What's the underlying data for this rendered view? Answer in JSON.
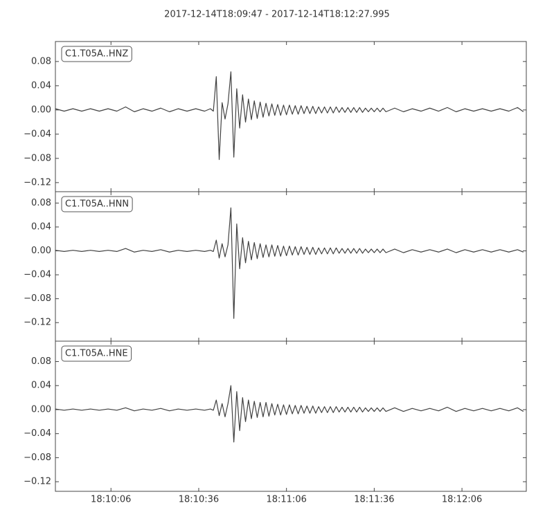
{
  "chart_data": [
    {
      "type": "line",
      "title": "2017-12-14T18:09:47  -  2017-12-14T18:12:27.995",
      "xlim": [
        65387,
        65547.995
      ],
      "ylim": [
        -0.135,
        0.113
      ],
      "yticks": [
        {
          "value": -0.12,
          "label": "−0.12"
        },
        {
          "value": -0.08,
          "label": "−0.08"
        },
        {
          "value": -0.04,
          "label": "−0.04"
        },
        {
          "value": 0,
          "label": "0.00"
        },
        0.04,
        0.08
      ],
      "x": [
        65387,
        65390,
        65393,
        65396,
        65399,
        65402,
        65405,
        65408,
        65411,
        65414,
        65417,
        65420,
        65423,
        65426,
        65429,
        65432,
        65435,
        65438,
        65440,
        65441,
        65442,
        65443,
        65444,
        65445,
        65446,
        65447,
        65448,
        65449,
        65450,
        65451,
        65452,
        65453,
        65454,
        65455,
        65456,
        65457,
        65458,
        65459,
        65460,
        65461,
        65462,
        65463,
        65464,
        65465,
        65466,
        65467,
        65468,
        65469,
        65470,
        65471,
        65472,
        65473,
        65474,
        65475,
        65476,
        65477,
        65478,
        65479,
        65480,
        65481,
        65482,
        65483,
        65484,
        65485,
        65486,
        65487,
        65488,
        65489,
        65490,
        65491,
        65492,
        65493,
        65494,
        65495,
        65496,
        65497,
        65498,
        65499,
        65500,
        65503,
        65506,
        65509,
        65512,
        65515,
        65518,
        65521,
        65524,
        65527,
        65530,
        65533,
        65536,
        65539,
        65542,
        65545,
        65547
      ],
      "series": [
        {
          "name": "C1.T05A..HNZ",
          "color": "#404040",
          "values": [
            0.002,
            -0.002,
            0.002,
            -0.002,
            0.002,
            -0.002,
            0.002,
            -0.002,
            0.005,
            -0.003,
            0.002,
            -0.002,
            0.003,
            -0.003,
            0.002,
            -0.002,
            0.002,
            -0.002,
            0.002,
            -0.002,
            0.055,
            -0.082,
            0.012,
            -0.015,
            0.01,
            0.063,
            -0.078,
            0.035,
            -0.03,
            0.025,
            -0.02,
            0.018,
            -0.016,
            0.015,
            -0.014,
            0.013,
            -0.012,
            0.011,
            -0.01,
            0.01,
            -0.009,
            0.009,
            -0.009,
            0.008,
            -0.008,
            0.008,
            -0.007,
            0.007,
            -0.007,
            0.007,
            -0.006,
            0.006,
            -0.006,
            0.006,
            -0.006,
            0.005,
            -0.005,
            0.005,
            -0.005,
            0.005,
            -0.005,
            0.005,
            -0.004,
            0.004,
            -0.004,
            0.004,
            -0.004,
            0.004,
            -0.004,
            0.004,
            -0.004,
            0.003,
            -0.003,
            0.003,
            -0.003,
            0.003,
            -0.003,
            0.003,
            -0.003,
            0.003,
            -0.003,
            0.002,
            -0.002,
            0.003,
            -0.002,
            0.004,
            -0.003,
            0.002,
            -0.002,
            0.002,
            -0.002,
            0.002,
            -0.002,
            0.004,
            -0.003
          ]
        }
      ]
    },
    {
      "type": "line",
      "xlim": [
        65387,
        65547.995
      ],
      "ylim": [
        -0.151,
        0.099
      ],
      "yticks": [
        {
          "value": -0.12,
          "label": "−0.12"
        },
        {
          "value": -0.08,
          "label": "−0.08"
        },
        {
          "value": -0.04,
          "label": "−0.04"
        },
        {
          "value": 0,
          "label": "0.00"
        },
        0.04,
        0.08
      ],
      "x": [
        65387,
        65390,
        65393,
        65396,
        65399,
        65402,
        65405,
        65408,
        65411,
        65414,
        65417,
        65420,
        65423,
        65426,
        65429,
        65432,
        65435,
        65438,
        65440,
        65441,
        65442,
        65443,
        65444,
        65445,
        65446,
        65447,
        65448,
        65449,
        65450,
        65451,
        65452,
        65453,
        65454,
        65455,
        65456,
        65457,
        65458,
        65459,
        65460,
        65461,
        65462,
        65463,
        65464,
        65465,
        65466,
        65467,
        65468,
        65469,
        65470,
        65471,
        65472,
        65473,
        65474,
        65475,
        65476,
        65477,
        65478,
        65479,
        65480,
        65481,
        65482,
        65483,
        65484,
        65485,
        65486,
        65487,
        65488,
        65489,
        65490,
        65491,
        65492,
        65493,
        65494,
        65495,
        65496,
        65497,
        65498,
        65499,
        65500,
        65503,
        65506,
        65509,
        65512,
        65515,
        65518,
        65521,
        65524,
        65527,
        65530,
        65533,
        65536,
        65539,
        65542,
        65545,
        65547
      ],
      "series": [
        {
          "name": "C1.T05A..HNN",
          "color": "#404040",
          "values": [
            0.001,
            -0.001,
            0.001,
            -0.001,
            0.001,
            -0.001,
            0.001,
            -0.001,
            0.004,
            -0.002,
            0.001,
            -0.001,
            0.002,
            -0.002,
            0.001,
            -0.001,
            0.001,
            -0.001,
            0.001,
            -0.001,
            0.018,
            -0.012,
            0.012,
            -0.01,
            0.01,
            0.072,
            -0.113,
            0.045,
            -0.03,
            0.022,
            -0.02,
            0.016,
            -0.015,
            0.014,
            -0.013,
            0.012,
            -0.011,
            0.01,
            -0.01,
            0.01,
            -0.009,
            0.009,
            -0.009,
            0.008,
            -0.008,
            0.008,
            -0.007,
            0.007,
            -0.007,
            0.007,
            -0.006,
            0.006,
            -0.006,
            0.006,
            -0.006,
            0.005,
            -0.005,
            0.005,
            -0.005,
            0.005,
            -0.005,
            0.005,
            -0.004,
            0.004,
            -0.004,
            0.004,
            -0.004,
            0.004,
            -0.004,
            0.004,
            -0.004,
            0.003,
            -0.003,
            0.003,
            -0.003,
            0.003,
            -0.003,
            0.003,
            -0.003,
            0.003,
            -0.003,
            0.002,
            -0.002,
            0.002,
            -0.002,
            0.003,
            -0.003,
            0.002,
            -0.002,
            0.002,
            -0.002,
            0.002,
            -0.002,
            0.002,
            -0.002
          ]
        }
      ]
    },
    {
      "type": "line",
      "xlim": [
        65387,
        65547.995
      ],
      "ylim": [
        -0.136,
        0.114
      ],
      "yticks": [
        {
          "value": -0.12,
          "label": "−0.12"
        },
        {
          "value": -0.08,
          "label": "−0.08"
        },
        {
          "value": -0.04,
          "label": "−0.04"
        },
        {
          "value": 0,
          "label": "0.00"
        },
        0.04,
        0.08
      ],
      "xticks": [
        {
          "value": 65406,
          "label": "18:10:06"
        },
        {
          "value": 65436,
          "label": "18:10:36"
        },
        {
          "value": 65466,
          "label": "18:11:06"
        },
        {
          "value": 65496,
          "label": "18:11:36"
        },
        {
          "value": 65526,
          "label": "18:12:06"
        }
      ],
      "x": [
        65387,
        65390,
        65393,
        65396,
        65399,
        65402,
        65405,
        65408,
        65411,
        65414,
        65417,
        65420,
        65423,
        65426,
        65429,
        65432,
        65435,
        65438,
        65440,
        65441,
        65442,
        65443,
        65444,
        65445,
        65446,
        65447,
        65448,
        65449,
        65450,
        65451,
        65452,
        65453,
        65454,
        65455,
        65456,
        65457,
        65458,
        65459,
        65460,
        65461,
        65462,
        65463,
        65464,
        65465,
        65466,
        65467,
        65468,
        65469,
        65470,
        65471,
        65472,
        65473,
        65474,
        65475,
        65476,
        65477,
        65478,
        65479,
        65480,
        65481,
        65482,
        65483,
        65484,
        65485,
        65486,
        65487,
        65488,
        65489,
        65490,
        65491,
        65492,
        65493,
        65494,
        65495,
        65496,
        65497,
        65498,
        65499,
        65500,
        65503,
        65506,
        65509,
        65512,
        65515,
        65518,
        65521,
        65524,
        65527,
        65530,
        65533,
        65536,
        65539,
        65542,
        65545,
        65547
      ],
      "series": [
        {
          "name": "C1.T05A..HNE",
          "color": "#404040",
          "values": [
            0.001,
            -0.001,
            0.001,
            -0.001,
            0.001,
            -0.001,
            0.001,
            -0.001,
            0.003,
            -0.002,
            0.001,
            -0.001,
            0.002,
            -0.002,
            0.001,
            -0.001,
            0.001,
            -0.001,
            0.001,
            -0.001,
            0.016,
            -0.01,
            0.01,
            -0.012,
            0.01,
            0.04,
            -0.054,
            0.03,
            -0.035,
            0.02,
            -0.02,
            0.016,
            -0.015,
            0.014,
            -0.013,
            0.012,
            -0.012,
            0.012,
            -0.011,
            0.01,
            -0.009,
            0.009,
            -0.009,
            0.008,
            -0.008,
            0.008,
            -0.007,
            0.007,
            -0.007,
            0.007,
            -0.006,
            0.006,
            -0.006,
            0.006,
            -0.006,
            0.005,
            -0.005,
            0.005,
            -0.005,
            0.005,
            -0.005,
            0.005,
            -0.004,
            0.004,
            -0.004,
            0.004,
            -0.004,
            0.004,
            -0.004,
            0.004,
            -0.004,
            0.003,
            -0.003,
            0.003,
            -0.003,
            0.003,
            -0.003,
            0.003,
            -0.003,
            0.003,
            -0.003,
            0.002,
            -0.002,
            0.002,
            -0.002,
            0.004,
            -0.003,
            0.002,
            -0.002,
            0.002,
            -0.002,
            0.002,
            -0.002,
            0.003,
            -0.003
          ]
        }
      ]
    }
  ]
}
